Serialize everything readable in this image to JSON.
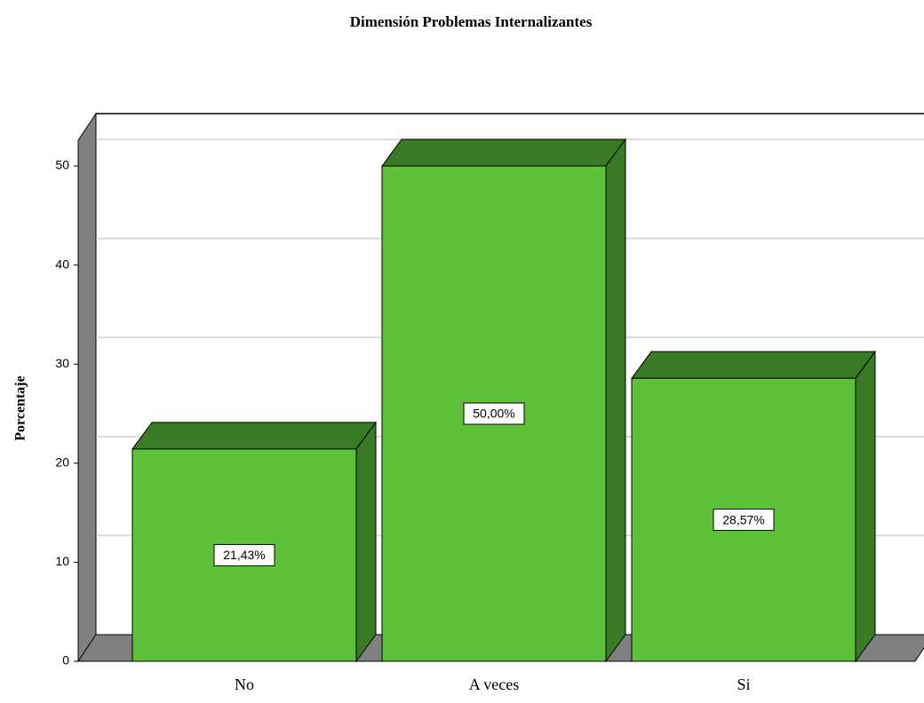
{
  "chart_data": {
    "type": "bar3d",
    "title": "Dimensión Problemas Internalizantes",
    "y_label": "Porcentaje",
    "categories": [
      "No",
      "A veces",
      "Si"
    ],
    "values": [
      21.43,
      50.0,
      28.57
    ],
    "value_labels": [
      "21,43%",
      "50,00%",
      "28,57%"
    ],
    "color": "#5ec13a",
    "ylim": [
      0,
      52.6
    ],
    "yticks": [
      0,
      10,
      20,
      30,
      40,
      50
    ],
    "grid": true
  }
}
